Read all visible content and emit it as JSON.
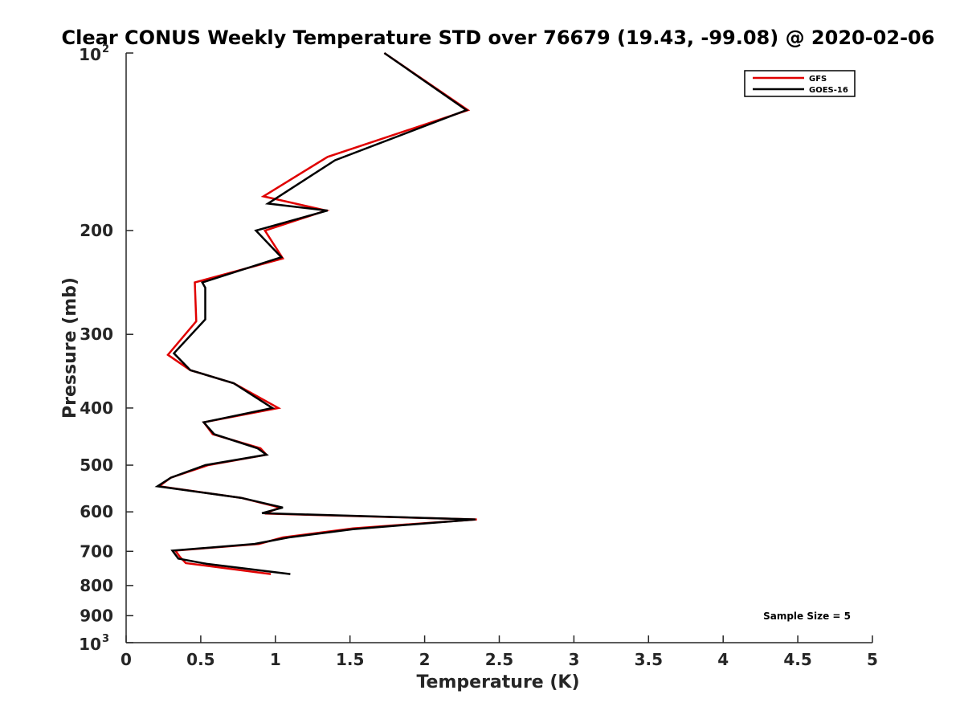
{
  "chart_data": {
    "type": "line",
    "title": "Clear CONUS Weekly Temperature STD over 76679 (19.43, -99.08) @ 2020-02-06",
    "xlabel": "Temperature (K)",
    "ylabel": "Pressure (mb)",
    "xlim": [
      0,
      5
    ],
    "ylim": [
      100,
      1000
    ],
    "yscale": "log",
    "y_reversed": true,
    "grid": false,
    "legend_position": "top-right",
    "x_ticks": [
      {
        "value": 0,
        "label": "0"
      },
      {
        "value": 0.5,
        "label": "0.5"
      },
      {
        "value": 1,
        "label": "1"
      },
      {
        "value": 1.5,
        "label": "1.5"
      },
      {
        "value": 2,
        "label": "2"
      },
      {
        "value": 2.5,
        "label": "2.5"
      },
      {
        "value": 3,
        "label": "3"
      },
      {
        "value": 3.5,
        "label": "3.5"
      },
      {
        "value": 4,
        "label": "4"
      },
      {
        "value": 4.5,
        "label": "4.5"
      },
      {
        "value": 5,
        "label": "5"
      }
    ],
    "y_ticks": [
      {
        "value": 100,
        "base": "10",
        "exp": "2"
      },
      {
        "value": 200,
        "label": "200"
      },
      {
        "value": 300,
        "label": "300"
      },
      {
        "value": 400,
        "label": "400"
      },
      {
        "value": 500,
        "label": "500"
      },
      {
        "value": 600,
        "label": "600"
      },
      {
        "value": 700,
        "label": "700"
      },
      {
        "value": 800,
        "label": "800"
      },
      {
        "value": 900,
        "label": "900"
      },
      {
        "value": 1000,
        "base": "10",
        "exp": "3"
      }
    ],
    "series": [
      {
        "name": "GFS",
        "color": "#e00000",
        "points": [
          [
            1.73,
            100
          ],
          [
            2.29,
            125
          ],
          [
            1.35,
            150
          ],
          [
            0.92,
            175
          ],
          [
            1.34,
            185
          ],
          [
            0.93,
            200
          ],
          [
            1.05,
            223
          ],
          [
            0.46,
            245
          ],
          [
            0.47,
            285
          ],
          [
            0.28,
            325
          ],
          [
            0.43,
            345
          ],
          [
            0.72,
            363
          ],
          [
            1.02,
            400
          ],
          [
            0.52,
            423
          ],
          [
            0.58,
            443
          ],
          [
            0.9,
            468
          ],
          [
            0.94,
            480
          ],
          [
            0.55,
            500
          ],
          [
            0.3,
            525
          ],
          [
            0.22,
            543
          ],
          [
            0.77,
            568
          ],
          [
            1.03,
            590
          ],
          [
            0.93,
            604
          ],
          [
            2.35,
            618
          ],
          [
            1.52,
            640
          ],
          [
            1.05,
            663
          ],
          [
            0.89,
            680
          ],
          [
            0.33,
            698
          ],
          [
            0.36,
            715
          ],
          [
            0.4,
            733
          ],
          [
            0.97,
            765
          ]
        ]
      },
      {
        "name": "GOES-16",
        "color": "#000000",
        "points": [
          [
            1.73,
            100
          ],
          [
            2.28,
            125
          ],
          [
            1.4,
            152
          ],
          [
            0.95,
            180
          ],
          [
            1.35,
            185
          ],
          [
            0.87,
            200
          ],
          [
            1.04,
            222
          ],
          [
            0.51,
            245
          ],
          [
            0.53,
            250
          ],
          [
            0.53,
            283
          ],
          [
            0.32,
            323
          ],
          [
            0.43,
            345
          ],
          [
            0.72,
            363
          ],
          [
            0.98,
            400
          ],
          [
            0.52,
            423
          ],
          [
            0.59,
            443
          ],
          [
            0.88,
            468
          ],
          [
            0.94,
            480
          ],
          [
            0.53,
            500
          ],
          [
            0.3,
            525
          ],
          [
            0.21,
            543
          ],
          [
            0.77,
            568
          ],
          [
            1.05,
            590
          ],
          [
            0.91,
            603
          ],
          [
            2.34,
            618
          ],
          [
            1.52,
            642
          ],
          [
            1.09,
            663
          ],
          [
            0.86,
            680
          ],
          [
            0.31,
            698
          ],
          [
            0.35,
            720
          ],
          [
            0.54,
            735
          ],
          [
            1.1,
            765
          ]
        ]
      }
    ],
    "annotations": [
      {
        "text": "Sample Size = 5",
        "position": "bottom-right"
      }
    ]
  }
}
